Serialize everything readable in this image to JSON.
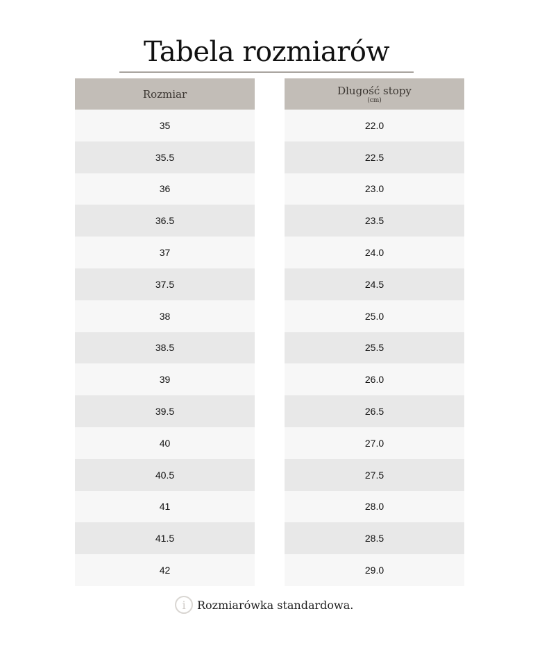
{
  "title": "Tabela rozmiarów",
  "table": {
    "headers": {
      "size": "Rozmiar",
      "length": "Dlugość stopy",
      "length_unit": "(cm)"
    },
    "rows": [
      {
        "size": "35",
        "length": "22.0"
      },
      {
        "size": "35.5",
        "length": "22.5"
      },
      {
        "size": "36",
        "length": "23.0"
      },
      {
        "size": "36.5",
        "length": "23.5"
      },
      {
        "size": "37",
        "length": "24.0"
      },
      {
        "size": "37.5",
        "length": "24.5"
      },
      {
        "size": "38",
        "length": "25.0"
      },
      {
        "size": "38.5",
        "length": "25.5"
      },
      {
        "size": "39",
        "length": "26.0"
      },
      {
        "size": "39.5",
        "length": "26.5"
      },
      {
        "size": "40",
        "length": "27.0"
      },
      {
        "size": "40.5",
        "length": "27.5"
      },
      {
        "size": "41",
        "length": "28.0"
      },
      {
        "size": "41.5",
        "length": "28.5"
      },
      {
        "size": "42",
        "length": "29.0"
      }
    ]
  },
  "note": {
    "icon": "info-icon",
    "text": "Rozmiarówka standardowa."
  },
  "colors": {
    "header_bg": "#c2bdb7",
    "row_light": "#f7f7f7",
    "row_dark": "#e8e8e8"
  }
}
